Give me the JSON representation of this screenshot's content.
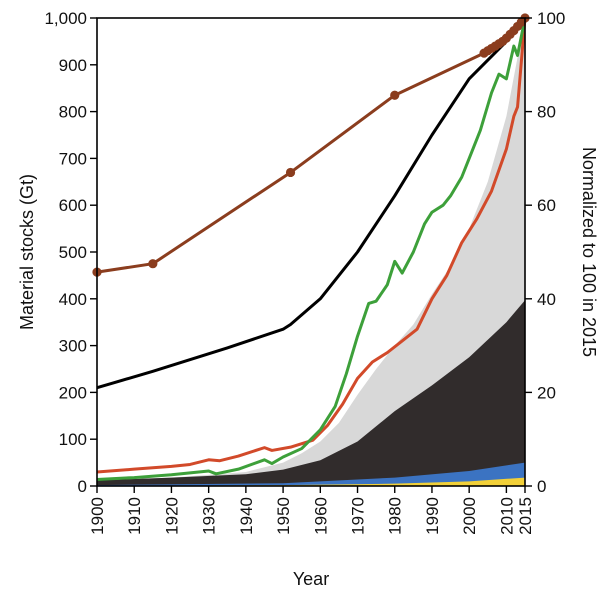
{
  "chart_data": {
    "type": "area",
    "xlabel": "Year",
    "ylabel_left": "Material stocks (Gt)",
    "ylabel_right": "Normalized to 100 in 2015",
    "xlim": [
      1900,
      2015
    ],
    "ylim_left": [
      0,
      1000
    ],
    "ylim_right": [
      0,
      100
    ],
    "x_ticks": [
      "1900",
      "1910",
      "1920",
      "1930",
      "1940",
      "1950",
      "1960",
      "1970",
      "1980",
      "1990",
      "2000",
      "2010",
      "2015"
    ],
    "y_left_ticks": [
      "0",
      "100",
      "200",
      "300",
      "400",
      "500",
      "600",
      "700",
      "800",
      "900",
      "1,000"
    ],
    "y_right_ticks": [
      "0",
      "20",
      "40",
      "60",
      "80",
      "100"
    ],
    "stacked_areas_gt": [
      {
        "color": "#f2d038",
        "points": [
          [
            1900,
            0
          ],
          [
            1950,
            2
          ],
          [
            1980,
            5
          ],
          [
            2000,
            10
          ],
          [
            2015,
            18
          ]
        ]
      },
      {
        "color": "#3b73c2",
        "points": [
          [
            1900,
            2
          ],
          [
            1950,
            6
          ],
          [
            1980,
            18
          ],
          [
            2000,
            32
          ],
          [
            2015,
            50
          ]
        ]
      },
      {
        "color": "#312c2c",
        "points": [
          [
            1900,
            12
          ],
          [
            1920,
            18
          ],
          [
            1940,
            25
          ],
          [
            1950,
            35
          ],
          [
            1960,
            55
          ],
          [
            1970,
            95
          ],
          [
            1980,
            160
          ],
          [
            1990,
            215
          ],
          [
            2000,
            275
          ],
          [
            2010,
            350
          ],
          [
            2015,
            397
          ]
        ]
      },
      {
        "color": "#d8d8d8",
        "points": [
          [
            1900,
            12
          ],
          [
            1920,
            18
          ],
          [
            1940,
            30
          ],
          [
            1950,
            50
          ],
          [
            1955,
            70
          ],
          [
            1960,
            95
          ],
          [
            1965,
            135
          ],
          [
            1970,
            195
          ],
          [
            1975,
            250
          ],
          [
            1980,
            300
          ],
          [
            1985,
            345
          ],
          [
            1990,
            410
          ],
          [
            1995,
            470
          ],
          [
            2000,
            550
          ],
          [
            2005,
            650
          ],
          [
            2010,
            790
          ],
          [
            2015,
            1000
          ]
        ]
      }
    ],
    "lines_normalized": [
      {
        "color": "#000000",
        "points": [
          [
            1900,
            21
          ],
          [
            1915,
            24.5
          ],
          [
            1935,
            29.5
          ],
          [
            1950,
            33.5
          ],
          [
            1952,
            34.5
          ],
          [
            1960,
            40
          ],
          [
            1970,
            50
          ],
          [
            1980,
            62
          ],
          [
            1990,
            75
          ],
          [
            2000,
            87
          ],
          [
            2010,
            95
          ],
          [
            2015,
            100
          ]
        ]
      },
      {
        "color": "#d24a2a",
        "points": [
          [
            1900,
            3
          ],
          [
            1910,
            3.6
          ],
          [
            1920,
            4.2
          ],
          [
            1925,
            4.6
          ],
          [
            1930,
            5.6
          ],
          [
            1933,
            5.4
          ],
          [
            1938,
            6.4
          ],
          [
            1945,
            8.2
          ],
          [
            1947,
            7.6
          ],
          [
            1952,
            8.3
          ],
          [
            1958,
            9.8
          ],
          [
            1962,
            13
          ],
          [
            1966,
            17.5
          ],
          [
            1970,
            23
          ],
          [
            1974,
            26.5
          ],
          [
            1978,
            28.5
          ],
          [
            1982,
            31
          ],
          [
            1986,
            33.5
          ],
          [
            1990,
            40
          ],
          [
            1994,
            45
          ],
          [
            1998,
            52
          ],
          [
            2002,
            57
          ],
          [
            2006,
            63
          ],
          [
            2010,
            72
          ],
          [
            2012,
            79
          ],
          [
            2013,
            81
          ],
          [
            2015,
            100
          ]
        ]
      },
      {
        "color": "#3da03a",
        "points": [
          [
            1900,
            1.4
          ],
          [
            1910,
            1.8
          ],
          [
            1920,
            2.4
          ],
          [
            1925,
            2.8
          ],
          [
            1930,
            3.2
          ],
          [
            1932,
            2.6
          ],
          [
            1938,
            3.6
          ],
          [
            1945,
            5.6
          ],
          [
            1947,
            4.8
          ],
          [
            1950,
            6.2
          ],
          [
            1955,
            8
          ],
          [
            1960,
            12
          ],
          [
            1964,
            17
          ],
          [
            1967,
            24
          ],
          [
            1970,
            32
          ],
          [
            1973,
            39
          ],
          [
            1975,
            39.5
          ],
          [
            1978,
            43
          ],
          [
            1980,
            48
          ],
          [
            1982,
            45.5
          ],
          [
            1985,
            50
          ],
          [
            1988,
            56
          ],
          [
            1990,
            58.5
          ],
          [
            1993,
            60
          ],
          [
            1995,
            62
          ],
          [
            1998,
            66
          ],
          [
            2000,
            70
          ],
          [
            2003,
            76
          ],
          [
            2006,
            84
          ],
          [
            2008,
            88
          ],
          [
            2010,
            87
          ],
          [
            2012,
            94
          ],
          [
            2013,
            92
          ],
          [
            2015,
            100
          ]
        ]
      },
      {
        "color": "#8b3d1e",
        "markers": true,
        "points": [
          [
            1900,
            45.7
          ],
          [
            1915,
            47.5
          ],
          [
            1952,
            67
          ],
          [
            1980,
            83.5
          ],
          [
            2004,
            92.5
          ],
          [
            2005,
            93
          ],
          [
            2006,
            93.5
          ],
          [
            2007,
            94
          ],
          [
            2008,
            94.5
          ],
          [
            2009,
            95
          ],
          [
            2010,
            95.7
          ],
          [
            2011,
            96.5
          ],
          [
            2012,
            97.3
          ],
          [
            2013,
            98.2
          ],
          [
            2014,
            99.1
          ],
          [
            2015,
            100
          ]
        ]
      }
    ]
  }
}
